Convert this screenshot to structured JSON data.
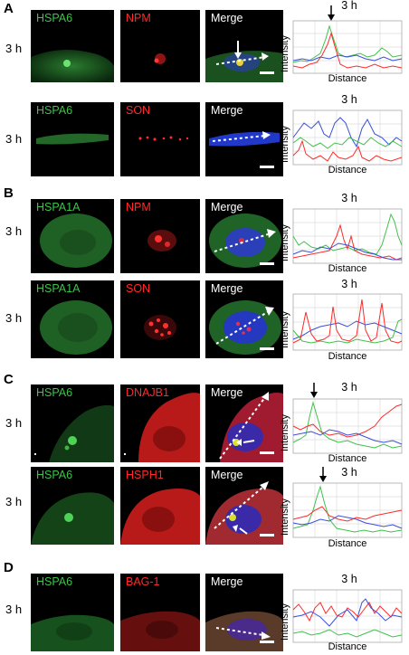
{
  "panels": [
    {
      "letter": "A",
      "rows": [
        {
          "time": "3 h",
          "left_label": "HSPA6",
          "mid_label": "NPM",
          "merge_label": "Merge",
          "title": "3 h",
          "ylabel": "Intensity",
          "xlabel": "Distance"
        },
        {
          "time": "3 h",
          "left_label": "HSPA6",
          "mid_label": "SON",
          "merge_label": "Merge",
          "title": "3 h",
          "ylabel": "Intensity",
          "xlabel": "Distance"
        }
      ]
    },
    {
      "letter": "B",
      "rows": [
        {
          "time": "3 h",
          "left_label": "HSPA1A",
          "mid_label": "NPM",
          "merge_label": "Merge",
          "title": "3 h",
          "ylabel": "Intensity",
          "xlabel": "Distance"
        },
        {
          "time": "3 h",
          "left_label": "HSPA1A",
          "mid_label": "SON",
          "merge_label": "Merge",
          "title": "3 h",
          "ylabel": "Intensity",
          "xlabel": "Distance"
        }
      ]
    },
    {
      "letter": "C",
      "rows": [
        {
          "time": "3 h",
          "left_label": "HSPA6",
          "mid_label": "DNAJB1",
          "merge_label": "Merge",
          "title": "3 h",
          "ylabel": "Intensity",
          "xlabel": "Distance"
        },
        {
          "time": "3 h",
          "left_label": "HSPA6",
          "mid_label": "HSPH1",
          "merge_label": "Merge",
          "title": "3 h",
          "ylabel": "Intensity",
          "xlabel": "Distance"
        }
      ]
    },
    {
      "letter": "D",
      "rows": [
        {
          "time": "3 h",
          "left_label": "HSPA6",
          "mid_label": "BAG-1",
          "merge_label": "Merge",
          "title": "3 h",
          "ylabel": "Intensity",
          "xlabel": "Distance"
        }
      ]
    }
  ],
  "colors": {
    "green_channel": "#3fc24a",
    "red_channel": "#ff2a2a",
    "blue_channel": "#3a4fd8"
  }
}
